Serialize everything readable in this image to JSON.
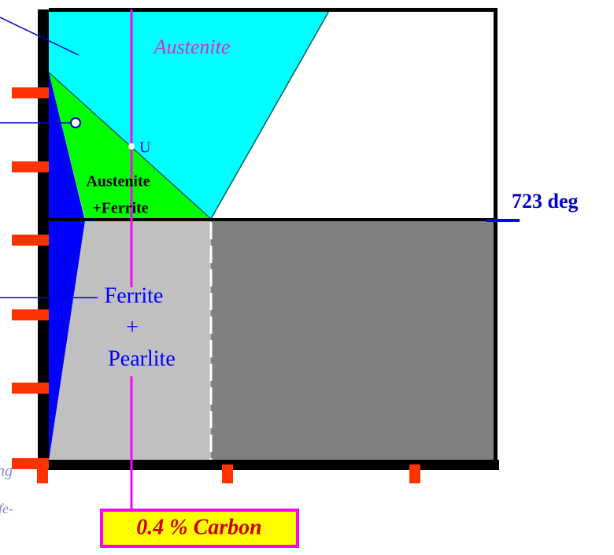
{
  "diagram": {
    "austenite": "Austenite",
    "point": "U",
    "austenite_ferrite": [
      "Austenite",
      "+Ferrite"
    ],
    "temperature": "723 deg",
    "ferrite_pearlite": [
      "Ferrite",
      "+",
      "Pearlite"
    ],
    "carbon": "0.4 % Carbon",
    "left_cut_1": "ng",
    "left_cut_2": "fe-"
  }
}
